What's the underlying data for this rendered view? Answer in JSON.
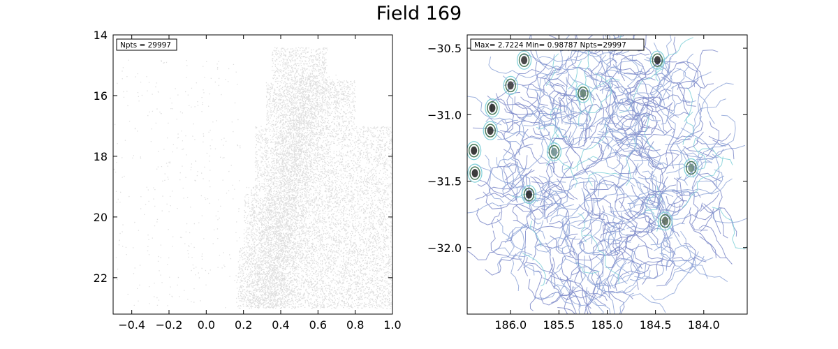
{
  "figure": {
    "title": "Field 169"
  },
  "chart_data": [
    {
      "type": "scatter",
      "panel": "left",
      "annotation": "Npts = 29997",
      "xlim": [
        -0.5,
        1.0
      ],
      "ylim": [
        23.2,
        14.0
      ],
      "y_inverted": true,
      "grid": false,
      "xticks": [
        -0.4,
        -0.2,
        0.0,
        0.2,
        0.4,
        0.6,
        0.8,
        1.0
      ],
      "xtick_labels": [
        "−0.4",
        "−0.2",
        "0.0",
        "0.2",
        "0.4",
        "0.6",
        "0.8",
        "1.0"
      ],
      "yticks": [
        14,
        16,
        18,
        20,
        22
      ],
      "ytick_labels": [
        "14",
        "16",
        "18",
        "20",
        "22"
      ],
      "point_color": "#000000",
      "point_opacity": 0.13,
      "n_points": 29997,
      "distribution": [
        {
          "ytop": 14.4,
          "ybot": 15.5,
          "xmin": 0.35,
          "xmax": 0.65,
          "weight": 0.06
        },
        {
          "ytop": 15.5,
          "ybot": 17.0,
          "xmin": 0.32,
          "xmax": 0.8,
          "weight": 0.12
        },
        {
          "ytop": 17.0,
          "ybot": 19.0,
          "xmin": 0.26,
          "xmax": 1.0,
          "weight": 0.22
        },
        {
          "ytop": 19.0,
          "ybot": 21.0,
          "xmin": 0.2,
          "xmax": 1.0,
          "weight": 0.26
        },
        {
          "ytop": 21.0,
          "ybot": 23.0,
          "xmin": 0.17,
          "xmax": 1.0,
          "weight": 0.3
        },
        {
          "ytop": 14.8,
          "ybot": 23.0,
          "xmin": -0.5,
          "xmax": 0.18,
          "weight": 0.04
        }
      ]
    },
    {
      "type": "contour",
      "panel": "right",
      "annotation": "Max=  2.7224 Min= 0.98787  Npts=29997",
      "xlim": [
        186.45,
        183.55
      ],
      "ylim": [
        -32.5,
        -30.4
      ],
      "x_inverted": true,
      "grid": false,
      "xticks": [
        186.0,
        185.5,
        185.0,
        184.5,
        184.0
      ],
      "xtick_labels": [
        "186.0",
        "185.5",
        "185.0",
        "184.5",
        "184.0"
      ],
      "yticks": [
        -30.5,
        -31.0,
        -31.5,
        -32.0
      ],
      "ytick_labels": [
        "−30.5",
        "−31.0",
        "−31.5",
        "−32.0"
      ],
      "field_center": [
        185.0,
        -31.42
      ],
      "field_radius_deg": 1.02,
      "contour_colors": [
        "#7d88c8",
        "#8fa6d8",
        "#7fd0d8"
      ],
      "peaks": [
        {
          "x": 186.38,
          "y": -31.27,
          "color": "#1a1a1a"
        },
        {
          "x": 186.37,
          "y": -31.44,
          "color": "#1a1a1a"
        },
        {
          "x": 186.19,
          "y": -30.95,
          "color": "#1a1a1a"
        },
        {
          "x": 186.21,
          "y": -31.12,
          "color": "#222222"
        },
        {
          "x": 185.81,
          "y": -31.6,
          "color": "#1a1a1a"
        },
        {
          "x": 185.86,
          "y": -30.59,
          "color": "#2a2a2a"
        },
        {
          "x": 186.0,
          "y": -30.78,
          "color": "#333333"
        },
        {
          "x": 184.48,
          "y": -30.59,
          "color": "#222222"
        },
        {
          "x": 184.4,
          "y": -31.8,
          "color": "#556655"
        },
        {
          "x": 185.25,
          "y": -30.84,
          "color": "#5a7a6a"
        },
        {
          "x": 184.13,
          "y": -31.4,
          "color": "#6a8a7a"
        },
        {
          "x": 185.55,
          "y": -31.28,
          "color": "#6a8a8a"
        }
      ]
    }
  ]
}
